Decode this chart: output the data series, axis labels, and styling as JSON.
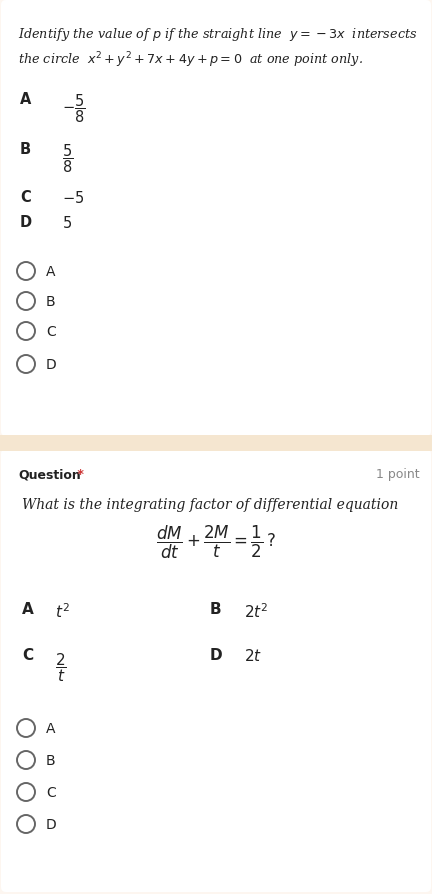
{
  "bg_color": "#fdf6f0",
  "white_card_color": "#ffffff",
  "text_color": "#222222",
  "radio_color": "#666666",
  "q1": {
    "q_line1": "Identify the value of $p$ if the straight line  $y = -3x$  intersects",
    "q_line2": "the circle  $x^2 + y^2 + 7x + 4y + p = 0$  at one point only.",
    "opt_A_label": "A",
    "opt_A_val": "$-\\dfrac{5}{8}$",
    "opt_B_label": "B",
    "opt_B_val": "$\\dfrac{5}{8}$",
    "opt_C_label": "C",
    "opt_C_val": "$-5$",
    "opt_D_label": "D",
    "opt_D_val": "$5$",
    "radio_labels": [
      "A",
      "B",
      "C",
      "D"
    ]
  },
  "sep_color": "#f5e6d0",
  "q2": {
    "header_bold": "Question",
    "header_star": " *",
    "header_points": "1 point",
    "q_line1": "What is the integrating factor of differential equation",
    "equation": "$\\dfrac{dM}{dt} + \\dfrac{2M}{t} = \\dfrac{1}{2}\\,?$",
    "opt_A_label": "A",
    "opt_A_val": "$t^2$",
    "opt_B_label": "B",
    "opt_B_val": "$2t^2$",
    "opt_C_label": "C",
    "opt_C_val": "$\\dfrac{2}{t}$",
    "opt_D_label": "D",
    "opt_D_val": "$2t$",
    "radio_labels": [
      "A",
      "B",
      "C",
      "D"
    ]
  }
}
